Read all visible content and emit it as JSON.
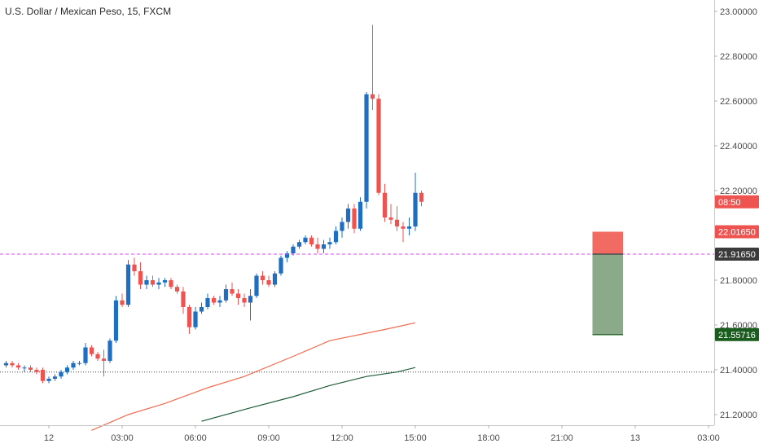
{
  "header": {
    "title": "U.S. Dollar / Mexican Peso, 15, FXCM"
  },
  "chart_data": {
    "type": "candlestick",
    "title": "U.S. Dollar / Mexican Peso, 15, FXCM",
    "ylim": [
      21.14,
      23.03
    ],
    "y_ticks": [
      "23.00000",
      "22.80000",
      "22.60000",
      "22.40000",
      "22.20000",
      "21.80000",
      "21.60000",
      "21.40000",
      "21.20000"
    ],
    "x_ticks": [
      "12",
      "03:00",
      "06:00",
      "09:00",
      "12:00",
      "15:00",
      "18:00",
      "21:00",
      "13",
      "03:00"
    ],
    "x_tick_index": [
      0,
      12,
      24,
      36,
      48,
      60,
      72,
      84,
      96,
      108
    ],
    "bar_index_offset": -7,
    "colors": {
      "up": "#1e6fc2",
      "down": "#ef5350",
      "ma_fast": "#f26b4e",
      "ma_slow": "#1f5c3a",
      "stop": "#f26b62",
      "target": "#8aaa8a"
    },
    "candles": [
      [
        21.42,
        21.44,
        21.41,
        21.43
      ],
      [
        21.43,
        21.44,
        21.41,
        21.42
      ],
      [
        21.42,
        21.43,
        21.4,
        21.41
      ],
      [
        21.41,
        21.42,
        21.39,
        21.41
      ],
      [
        21.41,
        21.42,
        21.39,
        21.4
      ],
      [
        21.4,
        21.41,
        21.38,
        21.39
      ],
      [
        21.4,
        21.41,
        21.34,
        21.35
      ],
      [
        21.35,
        21.37,
        21.34,
        21.36
      ],
      [
        21.36,
        21.38,
        21.35,
        21.37
      ],
      [
        21.37,
        21.4,
        21.36,
        21.39
      ],
      [
        21.39,
        21.42,
        21.38,
        21.41
      ],
      [
        21.41,
        21.44,
        21.4,
        21.43
      ],
      [
        21.43,
        21.44,
        21.42,
        21.43
      ],
      [
        21.43,
        21.52,
        21.42,
        21.5
      ],
      [
        21.5,
        21.51,
        21.46,
        21.47
      ],
      [
        21.47,
        21.48,
        21.44,
        21.45
      ],
      [
        21.45,
        21.49,
        21.37,
        21.44
      ],
      [
        21.44,
        21.54,
        21.43,
        21.53
      ],
      [
        21.53,
        21.73,
        21.52,
        21.71
      ],
      [
        21.71,
        21.74,
        21.68,
        21.69
      ],
      [
        21.69,
        21.89,
        21.68,
        21.87
      ],
      [
        21.87,
        21.9,
        21.82,
        21.84
      ],
      [
        21.84,
        21.88,
        21.76,
        21.78
      ],
      [
        21.78,
        21.82,
        21.76,
        21.8
      ],
      [
        21.8,
        21.82,
        21.77,
        21.78
      ],
      [
        21.78,
        21.81,
        21.76,
        21.79
      ],
      [
        21.79,
        21.81,
        21.77,
        21.8
      ],
      [
        21.8,
        21.81,
        21.76,
        21.77
      ],
      [
        21.77,
        21.78,
        21.74,
        21.75
      ],
      [
        21.75,
        21.77,
        21.65,
        21.68
      ],
      [
        21.68,
        21.69,
        21.56,
        21.59
      ],
      [
        21.59,
        21.68,
        21.58,
        21.66
      ],
      [
        21.66,
        21.7,
        21.65,
        21.68
      ],
      [
        21.68,
        21.74,
        21.67,
        21.72
      ],
      [
        21.72,
        21.73,
        21.69,
        21.7
      ],
      [
        21.7,
        21.73,
        21.68,
        21.71
      ],
      [
        21.71,
        21.78,
        21.7,
        21.76
      ],
      [
        21.76,
        21.79,
        21.73,
        21.74
      ],
      [
        21.74,
        21.76,
        21.69,
        21.72
      ],
      [
        21.72,
        21.74,
        21.68,
        21.7
      ],
      [
        21.7,
        21.76,
        21.62,
        21.73
      ],
      [
        21.73,
        21.83,
        21.72,
        21.82
      ],
      [
        21.82,
        21.84,
        21.78,
        21.8
      ],
      [
        21.8,
        21.82,
        21.77,
        21.78
      ],
      [
        21.78,
        21.84,
        21.77,
        21.83
      ],
      [
        21.83,
        21.91,
        21.82,
        21.9
      ],
      [
        21.9,
        21.93,
        21.88,
        21.92
      ],
      [
        21.92,
        21.96,
        21.91,
        21.95
      ],
      [
        21.95,
        21.98,
        21.94,
        21.97
      ],
      [
        21.97,
        22.0,
        21.96,
        21.99
      ],
      [
        21.99,
        22.0,
        21.95,
        21.96
      ],
      [
        21.96,
        21.99,
        21.92,
        21.94
      ],
      [
        21.94,
        21.98,
        21.92,
        21.96
      ],
      [
        21.96,
        21.99,
        21.94,
        21.97
      ],
      [
        21.97,
        22.04,
        21.96,
        22.02
      ],
      [
        22.02,
        22.08,
        21.99,
        22.06
      ],
      [
        22.06,
        22.14,
        22.03,
        22.12
      ],
      [
        22.12,
        22.14,
        22.01,
        22.03
      ],
      [
        22.03,
        22.17,
        22.02,
        22.15
      ],
      [
        22.15,
        22.64,
        22.12,
        22.63
      ],
      [
        22.63,
        22.94,
        22.56,
        22.61
      ],
      [
        22.61,
        22.63,
        22.18,
        22.19
      ],
      [
        22.19,
        22.23,
        22.06,
        22.08
      ],
      [
        22.08,
        22.14,
        22.05,
        22.07
      ],
      [
        22.07,
        22.13,
        22.02,
        22.04
      ],
      [
        22.04,
        22.06,
        21.97,
        22.03
      ],
      [
        22.03,
        22.08,
        22.0,
        22.04
      ],
      [
        22.04,
        22.28,
        22.02,
        22.19
      ],
      [
        22.19,
        22.2,
        22.13,
        22.15
      ]
    ],
    "ma_fast": [
      [
        7,
        21.13
      ],
      [
        13,
        21.2
      ],
      [
        19,
        21.25
      ],
      [
        26,
        21.32
      ],
      [
        32,
        21.37
      ],
      [
        40,
        21.46
      ],
      [
        46,
        21.53
      ],
      [
        55,
        21.58
      ],
      [
        60,
        21.61
      ]
    ],
    "ma_slow": [
      [
        25,
        21.17
      ],
      [
        33,
        21.23
      ],
      [
        40,
        21.28
      ],
      [
        46,
        21.33
      ],
      [
        52,
        21.37
      ],
      [
        57,
        21.39
      ],
      [
        60,
        21.41
      ]
    ],
    "dashed_level": 21.9165,
    "dotted_level": 21.39,
    "position": {
      "entry": 21.9165,
      "stop": 22.0165,
      "target": 21.55716,
      "x_from": 89,
      "x_to": 94
    },
    "price_tags": [
      {
        "text": "08:50",
        "value": 22.15,
        "color": "#ef5350"
      },
      {
        "text": "22.01650",
        "value": 22.0165,
        "color": "#ef5350"
      },
      {
        "text": "21.91650",
        "value": 21.9165,
        "color": "#3b3b3b"
      },
      {
        "text": "21.55716",
        "value": 21.55716,
        "color": "#1a5c1e"
      }
    ]
  }
}
